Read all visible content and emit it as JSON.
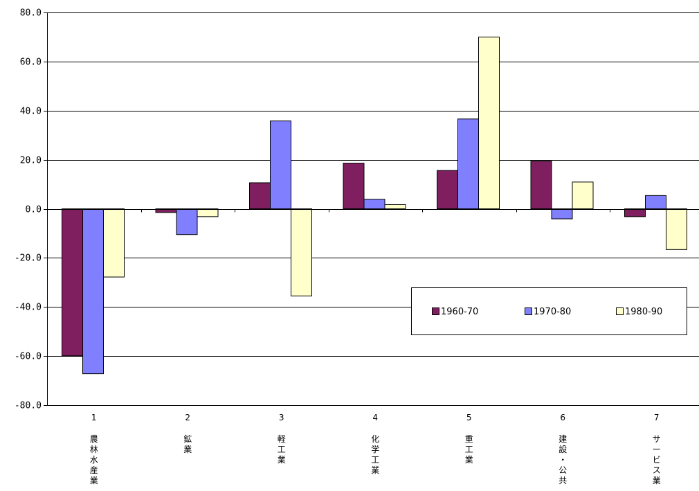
{
  "chart_data": {
    "type": "bar",
    "title": "",
    "xlabel": "",
    "ylabel": "",
    "ylim": [
      -80,
      80
    ],
    "yticks": [
      80,
      60,
      40,
      20,
      0,
      -20,
      -40,
      -60,
      -80
    ],
    "ytick_labels": [
      "80.0",
      "60.0",
      "40.0",
      "20.0",
      "0.0",
      "-20.0",
      "-40.0",
      "-60.0",
      "-80.0"
    ],
    "grid": "horizontal",
    "legend_position": "right-center",
    "categories": [
      {
        "number": "1",
        "label": [
          "農",
          "林",
          "水",
          "産",
          "業"
        ]
      },
      {
        "number": "2",
        "label": [
          "鉱",
          "業"
        ]
      },
      {
        "number": "3",
        "label": [
          "軽",
          "工",
          "業"
        ]
      },
      {
        "number": "4",
        "label": [
          "化",
          "学",
          "工",
          "業"
        ]
      },
      {
        "number": "5",
        "label": [
          "重",
          "工",
          "業"
        ]
      },
      {
        "number": "6",
        "label": [
          "建",
          "設",
          "・",
          "公",
          "共"
        ]
      },
      {
        "number": "7",
        "label": [
          "サ",
          "ー",
          "ビ",
          "ス",
          "業"
        ]
      }
    ],
    "series": [
      {
        "name": "1960-70",
        "color": "#7f1f5f",
        "values": [
          -59.9,
          -1.5,
          10.6,
          18.6,
          15.6,
          19.4,
          -3.2
        ]
      },
      {
        "name": "1970-80",
        "color": "#8080ff",
        "values": [
          -67.2,
          -10.5,
          35.8,
          3.9,
          36.6,
          -4.1,
          5.4
        ]
      },
      {
        "name": "1980-90",
        "color": "#ffffcc",
        "values": [
          -27.8,
          -3.2,
          -35.5,
          1.7,
          70.0,
          10.9,
          -16.6
        ]
      }
    ]
  }
}
